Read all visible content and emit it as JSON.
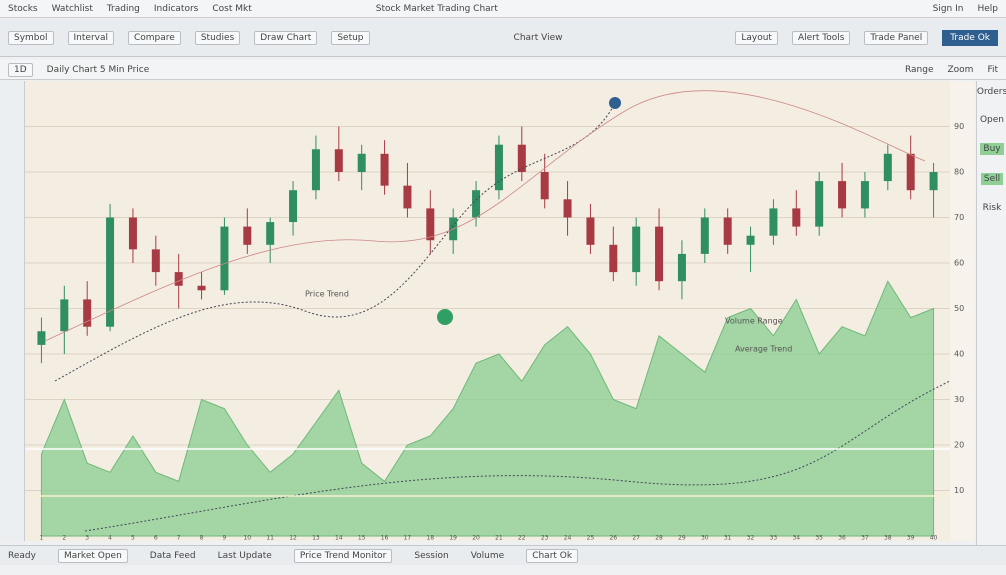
{
  "window_title": "Stock Market Trading Chart",
  "menu": [
    "Stocks",
    "Watchlist",
    "Trading",
    "Indicators",
    "Cost Mkt"
  ],
  "top_right": [
    "Sign In",
    "Help"
  ],
  "toolbar": [
    "Symbol",
    "Interval",
    "Compare",
    "Studies",
    "Draw Chart",
    "Setup"
  ],
  "toolbar_center": "Chart View",
  "toolbar_right": [
    "Layout",
    "Alert Tools",
    "Trade Panel"
  ],
  "action_button": "Trade Ok",
  "subbar": [
    "1D",
    "Daily Chart 5 Min Price"
  ],
  "subbar_right": [
    "Range",
    "Zoom",
    "Fit"
  ],
  "annotations": [
    "Price Trend",
    "Volume Range",
    "Average Trend"
  ],
  "sidebar": [
    "Orders",
    "Open",
    "Buy",
    "Sell",
    "Risk"
  ],
  "status": [
    "Ready",
    "Market Open",
    "Data Feed",
    "Last Update",
    "Price Trend Monitor",
    "Session",
    "Volume",
    "Chart Ok"
  ],
  "chart_data": {
    "type": "candlestick",
    "categories": [
      "1",
      "2",
      "3",
      "4",
      "5",
      "6",
      "7",
      "8",
      "9",
      "10",
      "11",
      "12",
      "13",
      "14",
      "15",
      "16",
      "17",
      "18",
      "19",
      "20",
      "21",
      "22",
      "23",
      "24",
      "25",
      "26",
      "27",
      "28",
      "29",
      "30",
      "31",
      "32",
      "33",
      "34",
      "35",
      "36",
      "37",
      "38",
      "39",
      "40"
    ],
    "open": [
      42,
      45,
      52,
      46,
      70,
      63,
      58,
      55,
      54,
      68,
      64,
      69,
      76,
      85,
      80,
      84,
      77,
      72,
      65,
      70,
      76,
      86,
      80,
      74,
      70,
      64,
      58,
      68,
      56,
      62,
      70,
      64,
      66,
      72,
      68,
      78,
      72,
      78,
      84,
      76
    ],
    "high": [
      48,
      55,
      56,
      73,
      72,
      66,
      62,
      58,
      70,
      72,
      70,
      78,
      88,
      90,
      86,
      87,
      82,
      76,
      72,
      78,
      88,
      90,
      84,
      78,
      73,
      68,
      70,
      72,
      65,
      72,
      72,
      68,
      74,
      76,
      80,
      82,
      80,
      86,
      88,
      82
    ],
    "low": [
      38,
      40,
      44,
      45,
      60,
      55,
      50,
      52,
      53,
      62,
      60,
      66,
      74,
      78,
      76,
      75,
      70,
      62,
      62,
      68,
      74,
      78,
      72,
      66,
      62,
      56,
      55,
      54,
      52,
      60,
      62,
      58,
      64,
      66,
      66,
      70,
      70,
      76,
      74,
      70
    ],
    "close": [
      45,
      52,
      46,
      70,
      63,
      58,
      55,
      54,
      68,
      64,
      69,
      76,
      85,
      80,
      84,
      77,
      72,
      65,
      70,
      76,
      86,
      80,
      74,
      70,
      64,
      58,
      68,
      56,
      62,
      70,
      64,
      66,
      72,
      68,
      78,
      72,
      78,
      84,
      76,
      80
    ],
    "volume": [
      18,
      30,
      16,
      14,
      22,
      14,
      12,
      30,
      28,
      20,
      14,
      18,
      25,
      32,
      16,
      12,
      20,
      22,
      28,
      38,
      40,
      34,
      42,
      46,
      40,
      30,
      28,
      44,
      40,
      36,
      48,
      50,
      44,
      52,
      40,
      46,
      44,
      56,
      48,
      50
    ],
    "up_color": "#2f8f63",
    "down_color": "#a83a44",
    "volume_color": "#8fcf95",
    "ylim": [
      0,
      100
    ],
    "yticks": [
      10,
      20,
      30,
      40,
      50,
      60,
      70,
      80,
      90
    ],
    "grid": true
  }
}
